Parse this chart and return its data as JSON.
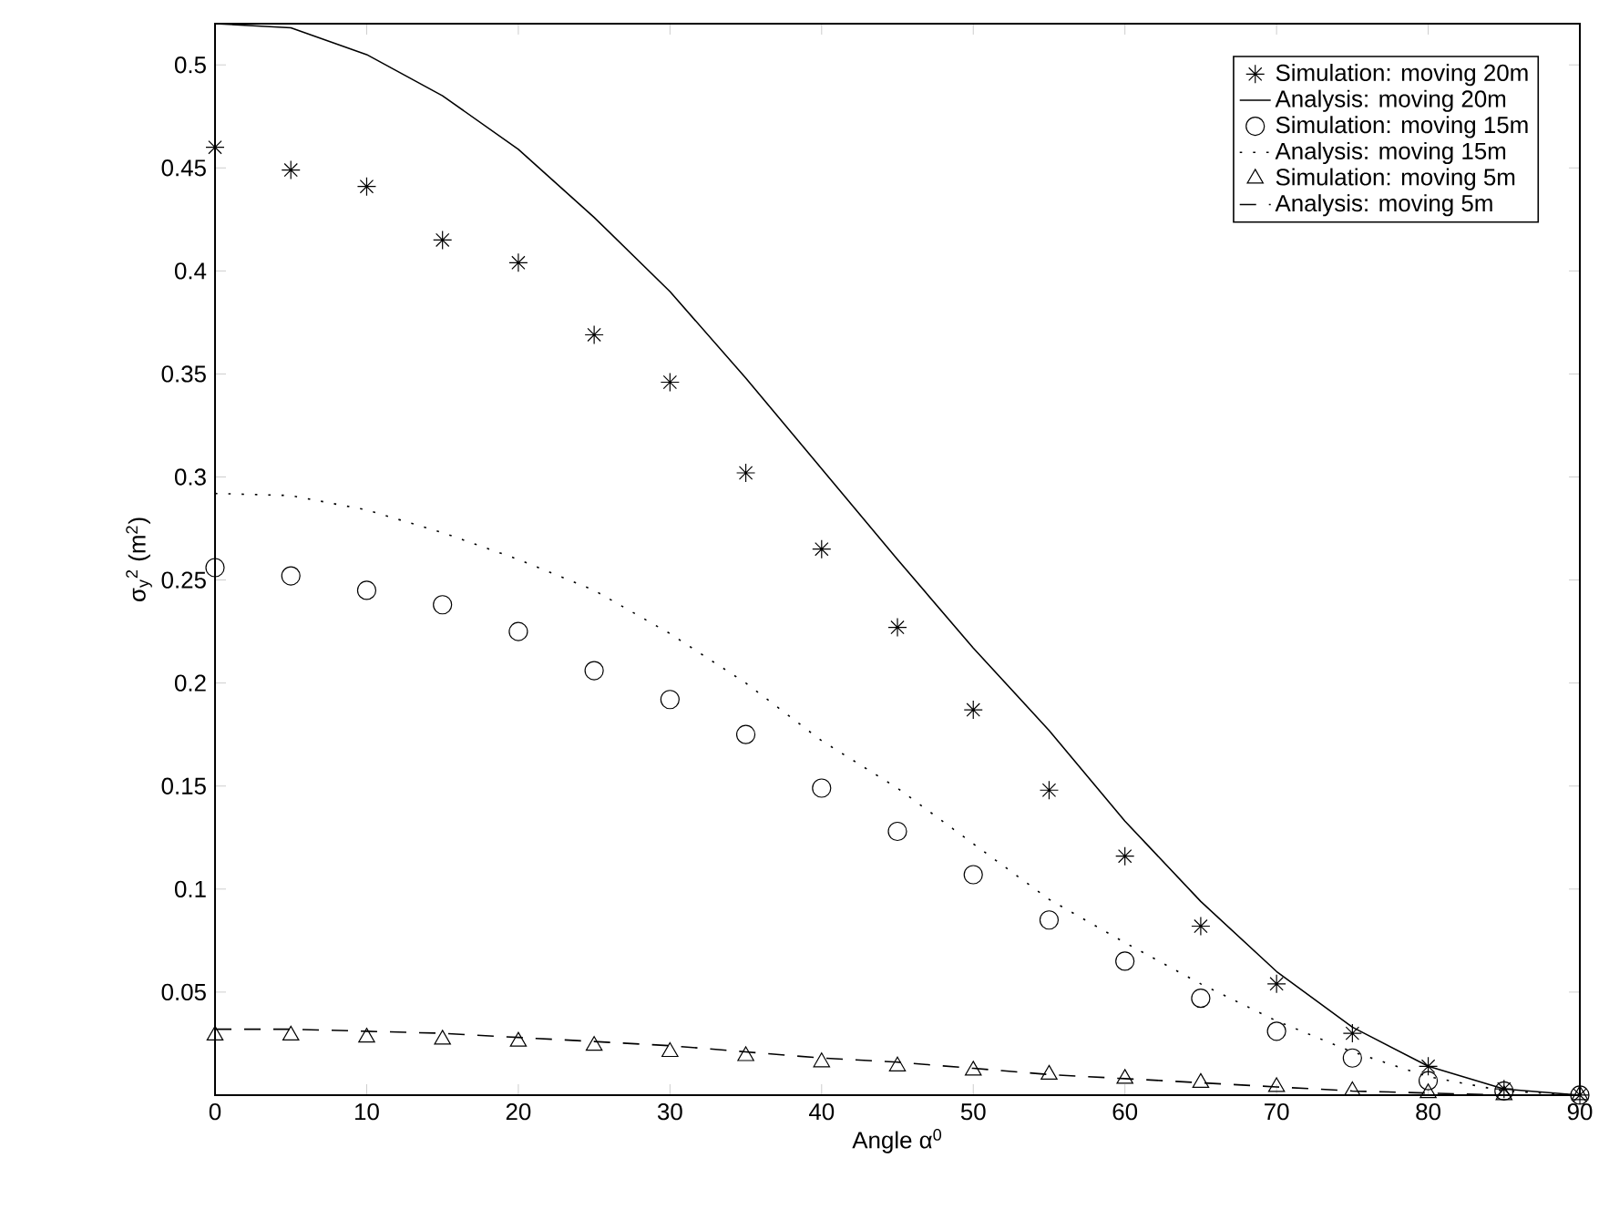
{
  "chart_data": {
    "type": "line",
    "xlabel": "Angle α$^{0}$",
    "ylabel": "σ$_{y}$$^{2}$ (m$^{2}$)",
    "x": [
      0,
      5,
      10,
      15,
      20,
      25,
      30,
      35,
      40,
      45,
      50,
      55,
      60,
      65,
      70,
      75,
      80,
      85,
      90
    ],
    "xlim": [
      0,
      90
    ],
    "ylim": [
      0,
      0.52
    ],
    "xticks": [
      0,
      10,
      20,
      30,
      40,
      50,
      60,
      70,
      80,
      90
    ],
    "yticks": [
      0.05,
      0.1,
      0.15,
      0.2,
      0.25,
      0.3,
      0.35,
      0.4,
      0.45,
      0.5
    ],
    "legend": "top right",
    "series": [
      {
        "name": "Simulation: moving 20m",
        "type": "scatter",
        "marker": "cross",
        "color": "#000000",
        "values": [
          0.46,
          0.449,
          0.441,
          0.415,
          0.404,
          0.369,
          0.346,
          0.302,
          0.265,
          0.227,
          0.187,
          0.148,
          0.116,
          0.082,
          0.054,
          0.03,
          0.014,
          0.003,
          0
        ]
      },
      {
        "name": "Analysis: moving 20m",
        "type": "line",
        "line_style": "solid",
        "color": "#000000",
        "values": [
          0.52,
          0.518,
          0.505,
          0.485,
          0.459,
          0.426,
          0.39,
          0.348,
          0.304,
          0.26,
          0.217,
          0.177,
          0.133,
          0.094,
          0.06,
          0.033,
          0.014,
          0.003,
          0
        ]
      },
      {
        "name": "Simulation: moving 15m",
        "type": "scatter",
        "marker": "circle",
        "color": "#000000",
        "values": [
          0.256,
          0.252,
          0.245,
          0.238,
          0.225,
          0.206,
          0.192,
          0.175,
          0.149,
          0.128,
          0.107,
          0.085,
          0.065,
          0.047,
          0.031,
          0.018,
          0.007,
          0.002,
          0
        ]
      },
      {
        "name": "Analysis: moving 15m",
        "type": "line",
        "line_style": "dotted",
        "color": "#000000",
        "values": [
          0.292,
          0.291,
          0.284,
          0.273,
          0.26,
          0.245,
          0.224,
          0.2,
          0.172,
          0.149,
          0.122,
          0.095,
          0.074,
          0.054,
          0.036,
          0.021,
          0.009,
          0.002,
          0
        ]
      },
      {
        "name": "Simulation: moving 5m",
        "type": "scatter",
        "marker": "triangle",
        "color": "#000000",
        "values": [
          0.029,
          0.029,
          0.028,
          0.027,
          0.026,
          0.024,
          0.021,
          0.019,
          0.016,
          0.014,
          0.012,
          0.01,
          0.008,
          0.006,
          0.004,
          0.002,
          0.001,
          0,
          0
        ]
      },
      {
        "name": "Analysis: moving 5m",
        "type": "line",
        "line_style": "dashed",
        "color": "#000000",
        "values": [
          0.032,
          0.032,
          0.031,
          0.03,
          0.028,
          0.026,
          0.024,
          0.021,
          0.018,
          0.016,
          0.013,
          0.01,
          0.008,
          0.006,
          0.004,
          0.002,
          0.001,
          0,
          0
        ]
      }
    ]
  }
}
